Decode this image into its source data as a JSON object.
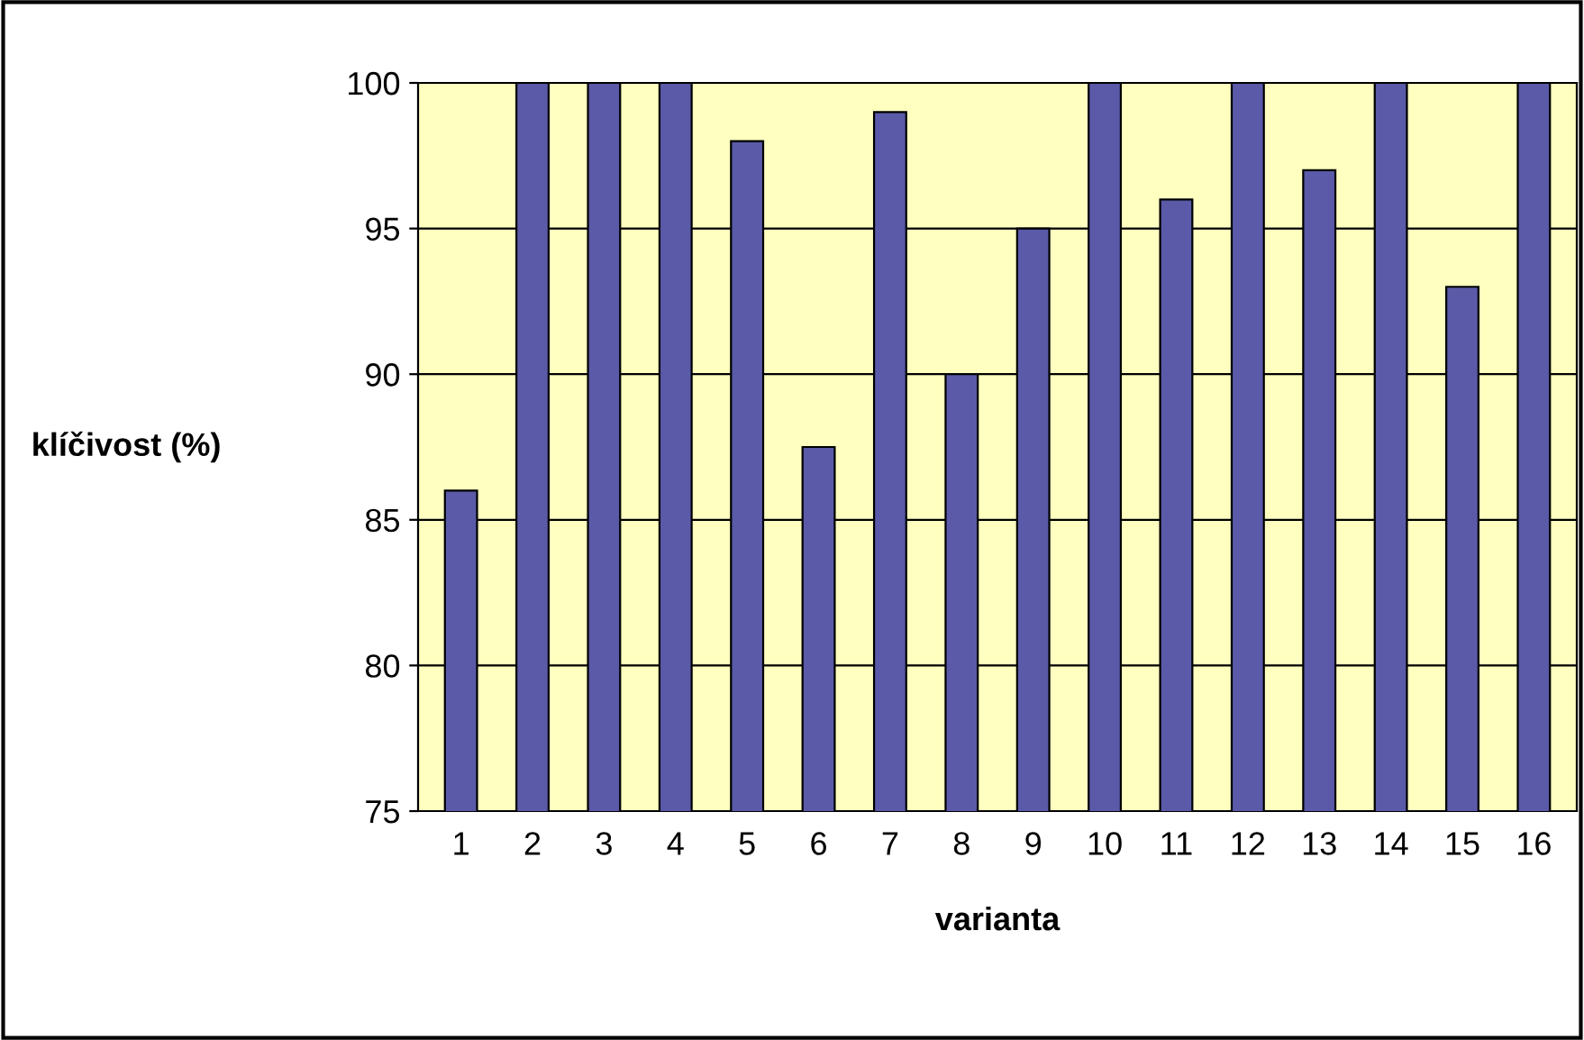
{
  "chart_data": {
    "type": "bar",
    "xlabel": "varianta",
    "ylabel": "klíčivost (%)",
    "categories": [
      "1",
      "2",
      "3",
      "4",
      "5",
      "6",
      "7",
      "8",
      "9",
      "10",
      "11",
      "12",
      "13",
      "14",
      "15",
      "16"
    ],
    "values": [
      86,
      100,
      100,
      100,
      98,
      87.5,
      99,
      90,
      95,
      100,
      96,
      100,
      97,
      100,
      93,
      100
    ],
    "color": "#5a5aa8",
    "ylim": [
      75,
      100
    ],
    "yticks": [
      75,
      80,
      85,
      90,
      95,
      100
    ],
    "grid": "y"
  }
}
